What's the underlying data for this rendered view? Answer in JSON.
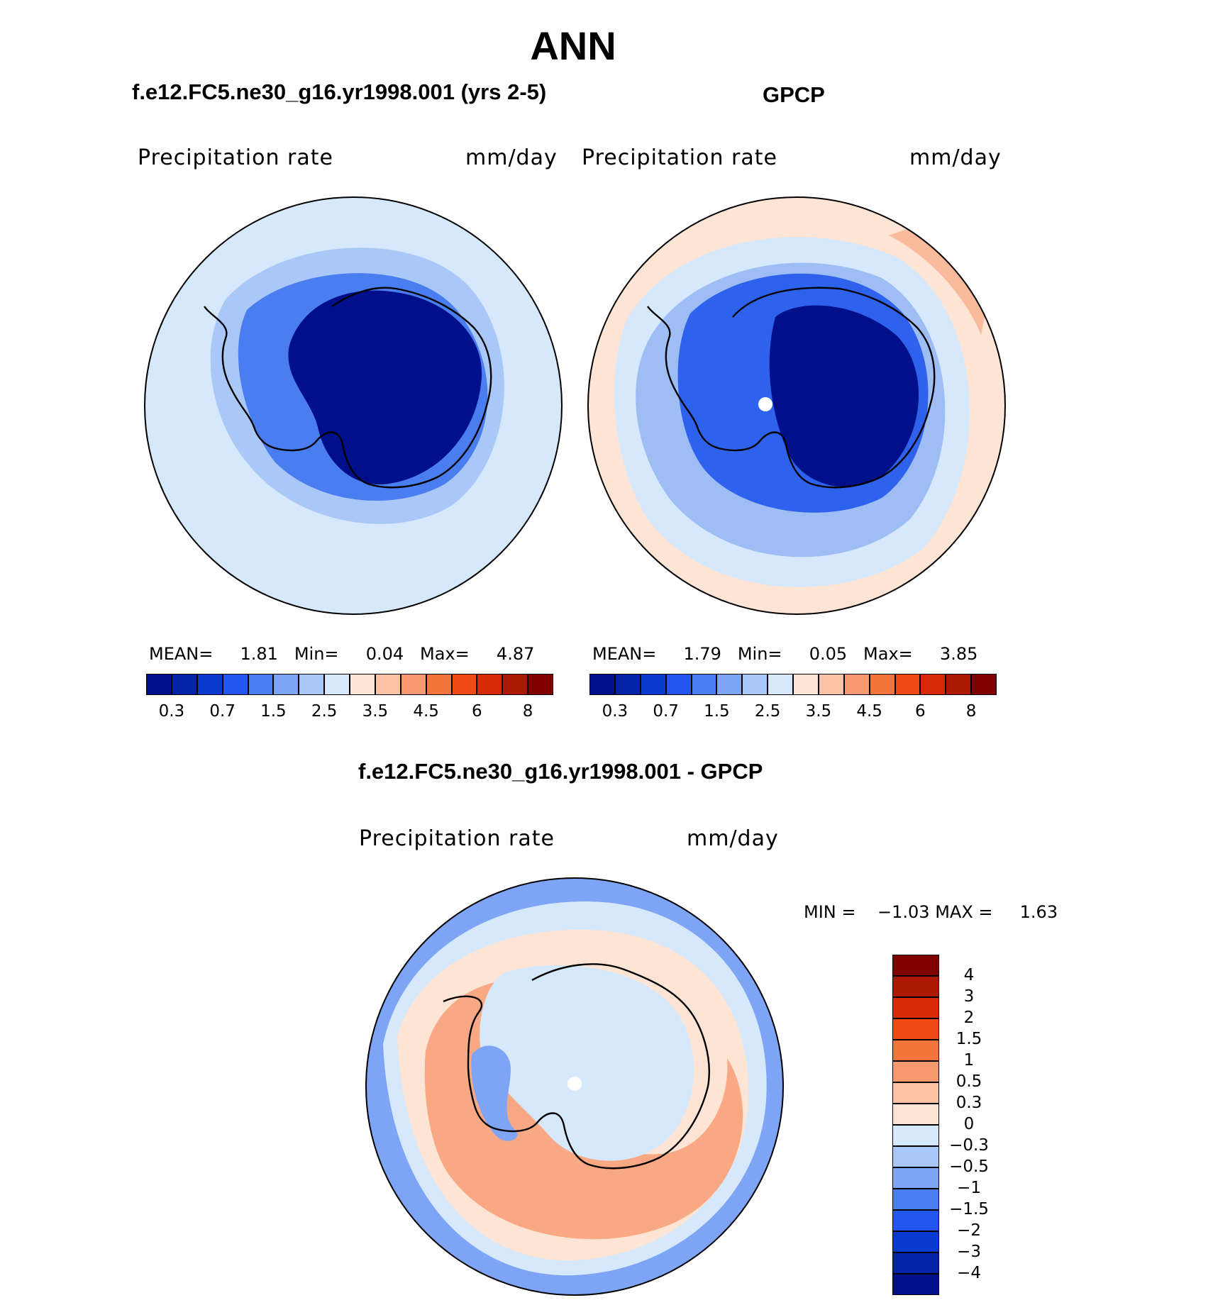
{
  "figure": {
    "title": "ANN"
  },
  "panels": [
    {
      "id": "model",
      "header": "f.e12.FC5.ne30_g16.yr1998.001 (yrs 2-5)",
      "variable": "Precipitation rate",
      "units": "mm/day",
      "stats": {
        "mean_label": "MEAN=",
        "mean": "1.81",
        "min_label": "Min=",
        "min": "0.04",
        "max_label": "Max=",
        "max": "4.87"
      },
      "ring_fill": "#d6e8fb",
      "ocean_fill": "#aac8f7",
      "coast_fill": "#4a7ef0",
      "land_fill": "#00108a",
      "pole_dot": false
    },
    {
      "id": "obs",
      "header": "GPCP",
      "variable": "Precipitation rate",
      "units": "mm/day",
      "stats": {
        "mean_label": "MEAN=",
        "mean": "1.79",
        "min_label": "Min=",
        "min": "0.05",
        "max_label": "Max=",
        "max": "3.85"
      },
      "ring_fill": "#fde4d4",
      "ocean_fill": "#9ebdf5",
      "coast_fill": "#2f62ec",
      "land_fill": "#00108a",
      "pole_dot": true
    }
  ],
  "abs_colorbar": {
    "colors": [
      "#00108a",
      "#0424a8",
      "#0a3ad0",
      "#2356f0",
      "#4a7ef0",
      "#7ea4f6",
      "#aac8f7",
      "#d6e8fb",
      "#fde4d4",
      "#fbc2a6",
      "#f7996f",
      "#f5743c",
      "#f04b15",
      "#d62a07",
      "#ad1a04",
      "#800000"
    ],
    "labels": [
      "0.3",
      "0.7",
      "1.5",
      "2.5",
      "3.5",
      "4.5",
      "6",
      "8"
    ]
  },
  "diff_panel": {
    "header": "f.e12.FC5.ne30_g16.yr1998.001 - GPCP",
    "variable": "Precipitation rate",
    "units": "mm/day",
    "min_label": "MIN =",
    "min": "−1.03",
    "max_label": "MAX =",
    "max": "1.63",
    "pole_dot": true
  },
  "diff_colorbar": {
    "colors_top_to_bottom": [
      "#800000",
      "#ad1a04",
      "#d62a07",
      "#f04b15",
      "#f5743c",
      "#f7996f",
      "#fbc2a6",
      "#fde4d4",
      "#d6e8fb",
      "#aac8f7",
      "#7ea4f6",
      "#4a7ef0",
      "#2356f0",
      "#0a3ad0",
      "#0424a8",
      "#00108a"
    ],
    "labels_top_to_bottom": [
      "4",
      "3",
      "2",
      "1.5",
      "1",
      "0.5",
      "0.3",
      "0",
      "−0.3",
      "−0.5",
      "−1",
      "−1.5",
      "−2",
      "−3",
      "−4"
    ]
  },
  "colors": {
    "coastline": "#000000",
    "outline": "#000000"
  }
}
